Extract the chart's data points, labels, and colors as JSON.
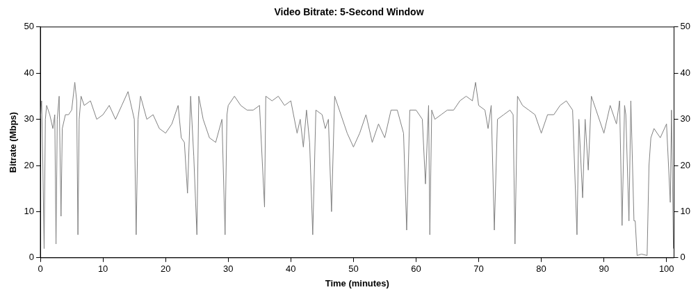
{
  "chart_data": {
    "type": "line",
    "title": "Video Bitrate: 5-Second Window",
    "xlabel": "Time (minutes)",
    "ylabel": "Bitrate (Mbps)",
    "xlim": [
      0,
      101.2
    ],
    "xticks": [
      0,
      10,
      20,
      30,
      40,
      50,
      60,
      70,
      80,
      90,
      100
    ],
    "ylim": [
      0,
      50
    ],
    "yticks": [
      0,
      10,
      20,
      30,
      40,
      50
    ],
    "y2lim": [
      0,
      50
    ],
    "y2ticks": [
      0,
      10,
      20,
      30,
      40,
      50
    ],
    "grid": false,
    "legend": false,
    "marker": "none",
    "line_style": "solid",
    "series": [
      {
        "color": "#808080",
        "x": [
          0,
          0.2,
          0.4,
          0.6,
          0.8,
          1,
          1.5,
          2,
          2.3,
          2.5,
          2.7,
          3,
          3.3,
          3.5,
          4,
          4.5,
          5,
          5.5,
          5.8,
          6,
          6.2,
          6.5,
          7,
          8,
          9,
          10,
          11,
          12,
          13,
          14,
          15,
          15.3,
          15.6,
          16,
          17,
          18,
          19,
          20,
          21,
          22,
          22.5,
          23,
          23.5,
          24,
          24.5,
          25,
          25.3,
          26,
          27,
          28,
          29,
          29.5,
          29.8,
          30,
          31,
          32,
          33,
          34,
          35,
          35.8,
          36,
          37,
          38,
          39,
          40,
          41,
          41.5,
          42,
          42.5,
          43,
          43.5,
          44,
          45,
          45.5,
          46,
          46.5,
          47,
          48,
          49,
          50,
          51,
          52,
          53,
          54,
          55,
          56,
          57,
          58,
          58.5,
          59,
          60,
          60.5,
          61,
          61.5,
          62,
          62.2,
          62.5,
          63,
          64,
          65,
          66,
          67,
          68,
          69,
          69.5,
          70,
          71,
          71.5,
          72,
          72.5,
          73,
          74,
          75,
          75.5,
          75.8,
          76.2,
          77,
          78,
          79,
          80,
          81,
          82,
          83,
          84,
          85,
          85.7,
          86,
          86.6,
          87,
          87.5,
          88,
          89,
          90,
          91,
          92,
          92.5,
          92.9,
          93.3,
          93.5,
          94,
          94.3,
          94.8,
          95,
          95.3,
          96,
          96.9,
          97.2,
          97.5,
          98,
          99,
          100,
          100.6,
          100.8,
          101.1
        ],
        "values": [
          30,
          34,
          20,
          2,
          30,
          33,
          31,
          28,
          31,
          3,
          30,
          35,
          9,
          28,
          31,
          31,
          32,
          38,
          34,
          5,
          30,
          35,
          33,
          34,
          30,
          31,
          33,
          30,
          33,
          36,
          30,
          5,
          30,
          35,
          30,
          31,
          28,
          27,
          29,
          33,
          26,
          25,
          14,
          35,
          22,
          5,
          35,
          30,
          26,
          25,
          30,
          5,
          31,
          33,
          35,
          33,
          32,
          32,
          33,
          11,
          35,
          34,
          35,
          33,
          34,
          27,
          30,
          24,
          32,
          25,
          5,
          32,
          31,
          28,
          30,
          10,
          35,
          31,
          27,
          24,
          27,
          31,
          25,
          29,
          26,
          32,
          32,
          27,
          6,
          32,
          32,
          31,
          30,
          16,
          33,
          5,
          32,
          30,
          31,
          32,
          32,
          34,
          35,
          34,
          38,
          33,
          32,
          28,
          33,
          6,
          30,
          31,
          32,
          31,
          3,
          35,
          33,
          32,
          31,
          27,
          31,
          31,
          33,
          34,
          32,
          5,
          30,
          13,
          30,
          19,
          35,
          31,
          27,
          33,
          29,
          34,
          7,
          33,
          31,
          8,
          34,
          8,
          8,
          0.5,
          0.8,
          0.5,
          20,
          26,
          28,
          26,
          29,
          12,
          32,
          2
        ]
      }
    ]
  }
}
